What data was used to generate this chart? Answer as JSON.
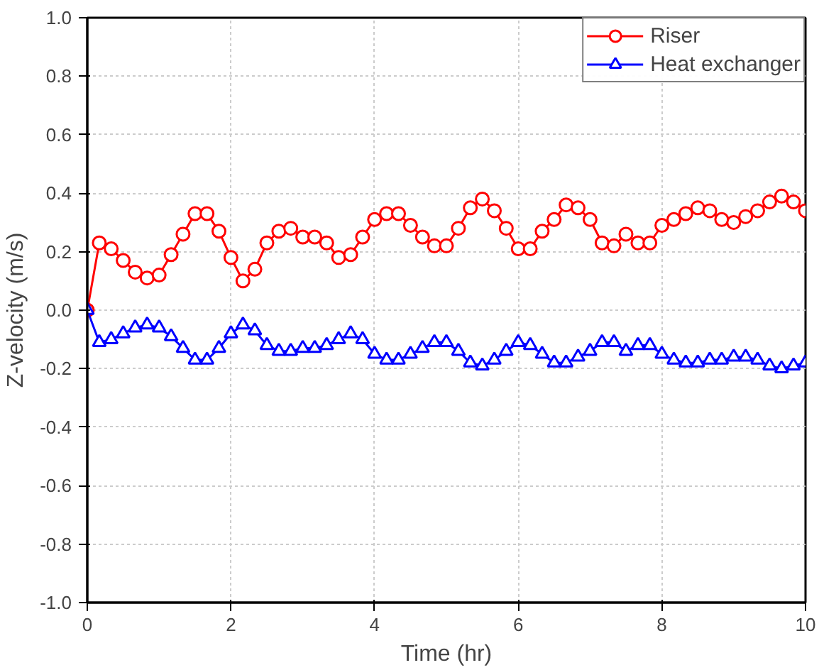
{
  "chart_data": {
    "type": "line",
    "xlabel": "Time (hr)",
    "ylabel": "Z-velocity (m/s)",
    "x": [
      0,
      0.167,
      0.333,
      0.5,
      0.667,
      0.833,
      1,
      1.167,
      1.333,
      1.5,
      1.667,
      1.833,
      2,
      2.167,
      2.333,
      2.5,
      2.667,
      2.833,
      3,
      3.167,
      3.333,
      3.5,
      3.667,
      3.833,
      4,
      4.167,
      4.333,
      4.5,
      4.667,
      4.833,
      5,
      5.167,
      5.333,
      5.5,
      5.667,
      5.833,
      6,
      6.167,
      6.333,
      6.5,
      6.667,
      6.833,
      7,
      7.167,
      7.333,
      7.5,
      7.667,
      7.833,
      8,
      8.167,
      8.333,
      8.5,
      8.667,
      8.833,
      9,
      9.167,
      9.333,
      9.5,
      9.667,
      9.833,
      10
    ],
    "series": [
      {
        "name": "Riser",
        "color": "#ff0000",
        "marker": "circle",
        "values": [
          0.0,
          0.23,
          0.21,
          0.17,
          0.13,
          0.11,
          0.12,
          0.19,
          0.26,
          0.33,
          0.33,
          0.27,
          0.18,
          0.1,
          0.14,
          0.23,
          0.27,
          0.28,
          0.25,
          0.25,
          0.23,
          0.18,
          0.19,
          0.25,
          0.31,
          0.33,
          0.33,
          0.29,
          0.25,
          0.22,
          0.22,
          0.28,
          0.35,
          0.38,
          0.34,
          0.28,
          0.21,
          0.21,
          0.27,
          0.31,
          0.36,
          0.35,
          0.31,
          0.23,
          0.22,
          0.26,
          0.23,
          0.23,
          0.29,
          0.31,
          0.33,
          0.35,
          0.34,
          0.31,
          0.3,
          0.32,
          0.34,
          0.37,
          0.39,
          0.37,
          0.34
        ]
      },
      {
        "name": "Heat exchanger",
        "color": "#0000ff",
        "marker": "triangle",
        "values": [
          0.0,
          -0.11,
          -0.1,
          -0.08,
          -0.06,
          -0.05,
          -0.06,
          -0.09,
          -0.13,
          -0.17,
          -0.17,
          -0.13,
          -0.08,
          -0.05,
          -0.07,
          -0.12,
          -0.14,
          -0.14,
          -0.13,
          -0.13,
          -0.12,
          -0.1,
          -0.08,
          -0.1,
          -0.15,
          -0.17,
          -0.17,
          -0.15,
          -0.13,
          -0.11,
          -0.11,
          -0.14,
          -0.18,
          -0.19,
          -0.17,
          -0.14,
          -0.11,
          -0.12,
          -0.15,
          -0.18,
          -0.18,
          -0.16,
          -0.14,
          -0.11,
          -0.11,
          -0.14,
          -0.12,
          -0.12,
          -0.15,
          -0.17,
          -0.18,
          -0.18,
          -0.17,
          -0.17,
          -0.16,
          -0.16,
          -0.17,
          -0.19,
          -0.2,
          -0.19,
          -0.18
        ]
      }
    ],
    "xlim": [
      0,
      10
    ],
    "ylim": [
      -1.0,
      1.0
    ],
    "xticks": [
      0,
      2,
      4,
      6,
      8,
      10
    ],
    "yticks": [
      {
        "value": -1.0,
        "label": "-1.0"
      },
      -0.8,
      -0.6,
      -0.4,
      -0.2,
      {
        "value": 0,
        "label": "0.0"
      },
      0.2,
      0.4,
      0.6,
      0.8,
      {
        "value": 1.0,
        "label": "1.0"
      }
    ],
    "grid": true,
    "legend": "top right",
    "line_style": "solid"
  }
}
